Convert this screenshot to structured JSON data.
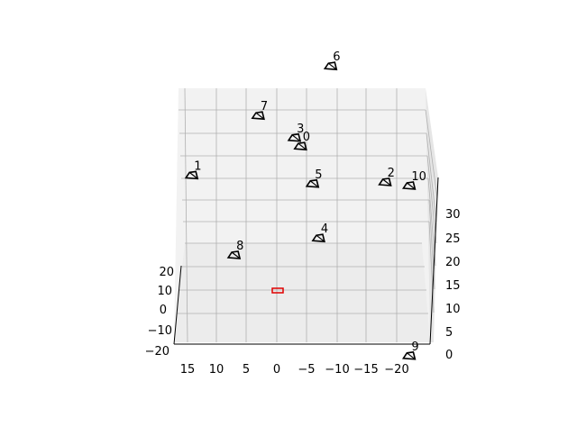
{
  "chart_data": {
    "type": "scatter",
    "projection": "3d",
    "grid": true,
    "marker_color": "#000000",
    "origin_marker_color": "#e00000",
    "pane_color": "#f2f2f2",
    "grid_color": "#b0b0b0",
    "x_ticks": [
      "15",
      "10",
      "5",
      "0",
      "−5",
      "−10",
      "−15",
      "−20"
    ],
    "y_ticks": [
      "20",
      "10",
      "0",
      "−10",
      "−20"
    ],
    "z_ticks": [
      "0",
      "5",
      "10",
      "15",
      "20",
      "25",
      "30"
    ],
    "points": [
      {
        "label": "0",
        "x": -4,
        "y": 4,
        "z": 22
      },
      {
        "label": "1",
        "x": 14,
        "y": 2,
        "z": 18
      },
      {
        "label": "2",
        "x": -18,
        "y": 2,
        "z": 17
      },
      {
        "label": "3",
        "x": -3,
        "y": 6,
        "z": 23
      },
      {
        "label": "4",
        "x": -7,
        "y": -8,
        "z": 10
      },
      {
        "label": "5",
        "x": -6,
        "y": 0,
        "z": 17
      },
      {
        "label": "6",
        "x": -9,
        "y": 10,
        "z": 33
      },
      {
        "label": "7",
        "x": 3,
        "y": 8,
        "z": 26
      },
      {
        "label": "8",
        "x": 7,
        "y": -12,
        "z": 8
      },
      {
        "label": "9",
        "x": -22,
        "y": -18,
        "z": -6
      },
      {
        "label": "10",
        "x": -22,
        "y": 6,
        "z": 16
      }
    ]
  }
}
